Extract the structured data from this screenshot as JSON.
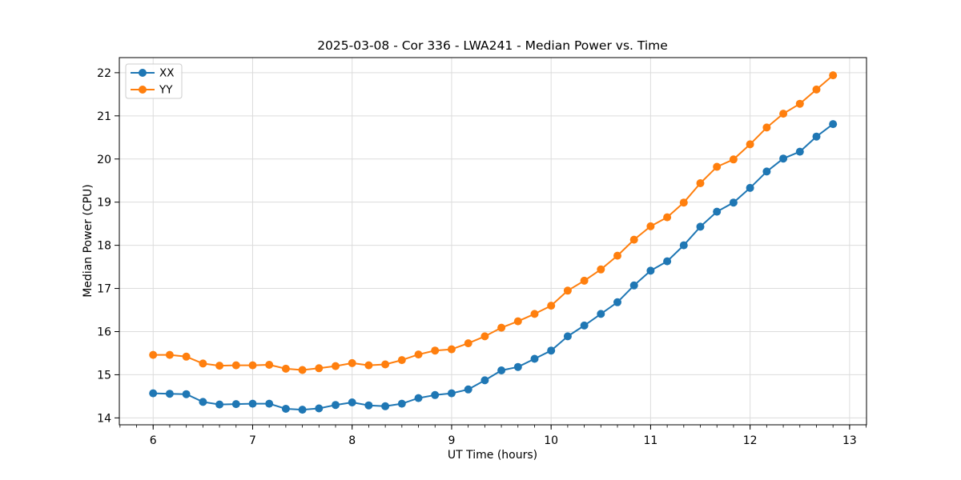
{
  "figure": {
    "title": "2025-03-08 - Cor 336 - LWA241 - Median Power vs. Time",
    "xlabel": "UT Time (hours)",
    "ylabel": "Median Power (CPU)"
  },
  "chart_data": {
    "type": "line",
    "title": "2025-03-08 - Cor 336 - LWA241 - Median Power vs. Time",
    "xlabel": "UT Time (hours)",
    "ylabel": "Median Power (CPU)",
    "xlim": [
      5.66,
      13.17
    ],
    "ylim": [
      13.84,
      22.35
    ],
    "x_ticks": [
      6,
      7,
      8,
      9,
      10,
      11,
      12,
      13
    ],
    "y_ticks": [
      14,
      15,
      16,
      17,
      18,
      19,
      20,
      21,
      22
    ],
    "x_minor_step": 0.166667,
    "grid": true,
    "legend_position": "upper left",
    "marker": "circle",
    "x": [
      6.0,
      6.1667,
      6.3333,
      6.5,
      6.6667,
      6.8333,
      7.0,
      7.1667,
      7.3333,
      7.5,
      7.6667,
      7.8333,
      8.0,
      8.1667,
      8.3333,
      8.5,
      8.6667,
      8.8333,
      9.0,
      9.1667,
      9.3333,
      9.5,
      9.6667,
      9.8333,
      10.0,
      10.1667,
      10.3333,
      10.5,
      10.6667,
      10.8333,
      11.0,
      11.1667,
      11.3333,
      11.5,
      11.6667,
      11.8333,
      12.0,
      12.1667,
      12.3333,
      12.5,
      12.6667,
      12.8333
    ],
    "series": [
      {
        "name": "XX",
        "color": "#1f77b4",
        "values": [
          14.57,
          14.56,
          14.55,
          14.37,
          14.31,
          14.32,
          14.33,
          14.33,
          14.21,
          14.19,
          14.22,
          14.3,
          14.36,
          14.29,
          14.27,
          14.33,
          14.46,
          14.53,
          14.57,
          14.66,
          14.87,
          15.1,
          15.18,
          15.37,
          15.56,
          15.89,
          16.14,
          16.41,
          16.68,
          17.07,
          17.41,
          17.63,
          18.0,
          18.43,
          18.78,
          18.99,
          19.33,
          19.71,
          20.01,
          20.17,
          20.52,
          20.81
        ]
      },
      {
        "name": "YY",
        "color": "#ff7f0e",
        "values": [
          15.46,
          15.46,
          15.42,
          15.26,
          15.21,
          15.22,
          15.22,
          15.23,
          15.14,
          15.11,
          15.15,
          15.2,
          15.27,
          15.22,
          15.24,
          15.34,
          15.47,
          15.56,
          15.59,
          15.73,
          15.89,
          16.09,
          16.24,
          16.41,
          16.6,
          16.95,
          17.18,
          17.44,
          17.76,
          18.13,
          18.44,
          18.65,
          18.99,
          19.44,
          19.82,
          19.99,
          20.34,
          20.73,
          21.05,
          21.28,
          21.61,
          21.94
        ]
      }
    ],
    "style": {
      "grid_color": "#dcdcdc",
      "spine_color": "#000000",
      "tick_label_size": 14,
      "marker_radius": 5,
      "line_width": 2
    }
  }
}
